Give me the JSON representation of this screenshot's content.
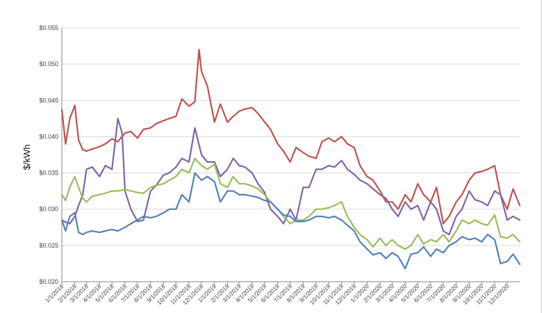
{
  "chart_data": {
    "type": "line",
    "ylabel": "$/kWh",
    "ylim": [
      0.02,
      0.055
    ],
    "y_ticks": [
      "$0.020",
      "$0.025",
      "$0.030",
      "$0.035",
      "$0.040",
      "$0.045",
      "$0.050",
      "$0.055"
    ],
    "x_ticks": [
      "1/1/2018",
      "2/1/2018",
      "3/1/2018",
      "4/1/2018",
      "5/1/2018",
      "6/1/2018",
      "7/1/2018",
      "8/1/2018",
      "9/1/2018",
      "10/1/2018",
      "11/1/2018",
      "12/1/2018",
      "1/1/2019",
      "2/1/2019",
      "3/1/2019",
      "4/1/2019",
      "5/1/2019",
      "6/1/2019",
      "7/1/2019",
      "8/1/2019",
      "9/1/2019",
      "10/1/2019",
      "11/1/2019",
      "12/1/2019",
      "1/1/2020",
      "2/1/2020",
      "3/1/2020",
      "4/1/2020",
      "5/1/2020",
      "6/1/2020",
      "7/1/2020",
      "8/1/2020",
      "9/1/2020",
      "10/1/2020",
      "11/1/2020",
      "12/1/2020"
    ],
    "grid": "horizontal",
    "legend": "none",
    "series": [
      {
        "color": "#c0504d",
        "x": [
          "1/1/2018",
          "1/10/2018",
          "1/20/2018",
          "2/1/2018",
          "2/10/2018",
          "2/20/2018",
          "3/1/2018",
          "3/15/2018",
          "4/1/2018",
          "4/15/2018",
          "5/1/2018",
          "5/15/2018",
          "6/1/2018",
          "6/15/2018",
          "7/1/2018",
          "7/15/2018",
          "8/1/2018",
          "8/15/2018",
          "9/1/2018",
          "9/15/2018",
          "10/1/2018",
          "10/15/2018",
          "11/1/2018",
          "11/15/2018",
          "11/25/2018",
          "12/1/2018",
          "12/15/2018",
          "1/1/2019",
          "1/15/2019",
          "2/1/2019",
          "2/15/2019",
          "3/1/2019",
          "3/15/2019",
          "4/1/2019",
          "4/15/2019",
          "5/1/2019",
          "5/15/2019",
          "6/1/2019",
          "6/15/2019",
          "7/1/2019",
          "7/15/2019",
          "8/1/2019",
          "8/15/2019",
          "9/1/2019",
          "9/15/2019",
          "10/1/2019",
          "10/15/2019",
          "11/1/2019",
          "11/15/2019",
          "12/1/2019",
          "12/15/2019",
          "1/1/2020",
          "1/15/2020",
          "2/1/2020",
          "2/15/2020",
          "3/1/2020",
          "3/15/2020",
          "4/1/2020",
          "4/15/2020",
          "5/1/2020",
          "5/15/2020",
          "6/1/2020",
          "6/15/2020",
          "7/1/2020",
          "7/15/2020",
          "8/1/2020",
          "8/15/2020",
          "9/1/2020",
          "9/15/2020",
          "10/1/2020",
          "10/15/2020",
          "11/1/2020",
          "11/15/2020",
          "12/1/2020",
          "12/15/2020",
          "12/31/2020"
        ],
        "y": [
          0.0437,
          0.039,
          0.0425,
          0.0443,
          0.0395,
          0.0382,
          0.038,
          0.0383,
          0.0386,
          0.039,
          0.0397,
          0.0393,
          0.0405,
          0.0407,
          0.0398,
          0.041,
          0.0412,
          0.0418,
          0.0422,
          0.0425,
          0.0428,
          0.0452,
          0.0442,
          0.0448,
          0.052,
          0.049,
          0.047,
          0.042,
          0.0445,
          0.042,
          0.0428,
          0.0435,
          0.0438,
          0.044,
          0.0432,
          0.042,
          0.041,
          0.039,
          0.038,
          0.0365,
          0.0385,
          0.0378,
          0.0373,
          0.037,
          0.0393,
          0.0398,
          0.0393,
          0.04,
          0.039,
          0.0385,
          0.036,
          0.0345,
          0.034,
          0.0325,
          0.031,
          0.031,
          0.03,
          0.032,
          0.031,
          0.0335,
          0.032,
          0.031,
          0.033,
          0.028,
          0.029,
          0.031,
          0.032,
          0.034,
          0.035,
          0.0352,
          0.0355,
          0.036,
          0.032,
          0.03,
          0.0328,
          0.0305
        ]
      },
      {
        "color": "#8064a2",
        "x": [
          "1/1/2018",
          "1/10/2018",
          "1/20/2018",
          "2/1/2018",
          "2/10/2018",
          "2/20/2018",
          "3/1/2018",
          "3/15/2018",
          "4/1/2018",
          "4/15/2018",
          "5/1/2018",
          "5/15/2018",
          "5/25/2018",
          "6/1/2018",
          "6/15/2018",
          "7/1/2018",
          "7/15/2018",
          "8/1/2018",
          "8/15/2018",
          "9/1/2018",
          "9/15/2018",
          "10/1/2018",
          "10/15/2018",
          "11/1/2018",
          "11/15/2018",
          "12/1/2018",
          "12/15/2018",
          "1/1/2019",
          "1/15/2019",
          "2/1/2019",
          "2/15/2019",
          "3/1/2019",
          "3/15/2019",
          "4/1/2019",
          "4/15/2019",
          "5/1/2019",
          "5/15/2019",
          "6/1/2019",
          "6/15/2019",
          "7/1/2019",
          "7/15/2019",
          "8/1/2019",
          "8/15/2019",
          "9/1/2019",
          "9/15/2019",
          "10/1/2019",
          "10/15/2019",
          "11/1/2019",
          "11/15/2019",
          "12/1/2019",
          "12/15/2019",
          "1/1/2020",
          "1/15/2020",
          "2/1/2020",
          "2/15/2020",
          "3/1/2020",
          "3/15/2020",
          "4/1/2020",
          "4/15/2020",
          "5/1/2020",
          "5/15/2020",
          "6/1/2020",
          "6/15/2020",
          "7/1/2020",
          "7/15/2020",
          "8/1/2020",
          "8/15/2020",
          "9/1/2020",
          "9/15/2020",
          "10/1/2020",
          "10/15/2020",
          "11/1/2020",
          "11/15/2020",
          "12/1/2020",
          "12/15/2020",
          "12/31/2020"
        ],
        "y": [
          0.0285,
          0.0282,
          0.028,
          0.029,
          0.0305,
          0.032,
          0.0355,
          0.0358,
          0.0345,
          0.036,
          0.0355,
          0.0425,
          0.0405,
          0.0325,
          0.03,
          0.0283,
          0.0285,
          0.0325,
          0.0333,
          0.0347,
          0.035,
          0.0358,
          0.037,
          0.0365,
          0.0412,
          0.0375,
          0.0365,
          0.0365,
          0.0345,
          0.0355,
          0.037,
          0.036,
          0.0358,
          0.035,
          0.0335,
          0.0323,
          0.03,
          0.029,
          0.028,
          0.03,
          0.0285,
          0.033,
          0.033,
          0.0355,
          0.0355,
          0.036,
          0.0358,
          0.0367,
          0.0355,
          0.0348,
          0.034,
          0.0335,
          0.0328,
          0.032,
          0.0315,
          0.03,
          0.029,
          0.031,
          0.03,
          0.0305,
          0.0285,
          0.031,
          0.03,
          0.027,
          0.0265,
          0.029,
          0.03,
          0.0325,
          0.0313,
          0.031,
          0.0305,
          0.0325,
          0.032,
          0.0285,
          0.029,
          0.0285
        ]
      },
      {
        "color": "#9bbb59",
        "x": [
          "1/1/2018",
          "1/10/2018",
          "1/20/2018",
          "2/1/2018",
          "2/10/2018",
          "2/20/2018",
          "3/1/2018",
          "3/15/2018",
          "4/1/2018",
          "4/15/2018",
          "5/1/2018",
          "5/15/2018",
          "6/1/2018",
          "6/15/2018",
          "7/1/2018",
          "7/15/2018",
          "8/1/2018",
          "8/15/2018",
          "9/1/2018",
          "9/15/2018",
          "10/1/2018",
          "10/15/2018",
          "11/1/2018",
          "11/15/2018",
          "12/1/2018",
          "12/15/2018",
          "1/1/2019",
          "1/15/2019",
          "2/1/2019",
          "2/15/2019",
          "3/1/2019",
          "3/15/2019",
          "4/1/2019",
          "4/15/2019",
          "5/1/2019",
          "5/15/2019",
          "6/1/2019",
          "6/15/2019",
          "7/1/2019",
          "7/15/2019",
          "8/1/2019",
          "8/15/2019",
          "9/1/2019",
          "9/15/2019",
          "10/1/2019",
          "10/15/2019",
          "11/1/2019",
          "11/15/2019",
          "12/1/2019",
          "12/15/2019",
          "1/1/2020",
          "1/15/2020",
          "2/1/2020",
          "2/15/2020",
          "3/1/2020",
          "3/15/2020",
          "4/1/2020",
          "4/15/2020",
          "5/1/2020",
          "5/15/2020",
          "6/1/2020",
          "6/15/2020",
          "7/1/2020",
          "7/15/2020",
          "8/1/2020",
          "8/15/2020",
          "9/1/2020",
          "9/15/2020",
          "10/1/2020",
          "10/15/2020",
          "11/1/2020",
          "11/15/2020",
          "12/1/2020",
          "12/15/2020",
          "12/31/2020"
        ],
        "y": [
          0.032,
          0.0312,
          0.033,
          0.0345,
          0.033,
          0.0315,
          0.031,
          0.0318,
          0.032,
          0.0322,
          0.0325,
          0.0325,
          0.0327,
          0.0325,
          0.0323,
          0.0322,
          0.033,
          0.0333,
          0.0335,
          0.034,
          0.0345,
          0.0355,
          0.035,
          0.037,
          0.036,
          0.0355,
          0.0362,
          0.0335,
          0.033,
          0.0345,
          0.0335,
          0.0335,
          0.0332,
          0.0328,
          0.032,
          0.031,
          0.03,
          0.029,
          0.028,
          0.0285,
          0.0285,
          0.029,
          0.03,
          0.03,
          0.0302,
          0.0305,
          0.031,
          0.029,
          0.0275,
          0.0265,
          0.0258,
          0.0248,
          0.026,
          0.025,
          0.0258,
          0.025,
          0.0245,
          0.025,
          0.0265,
          0.0252,
          0.0258,
          0.0255,
          0.0265,
          0.0255,
          0.027,
          0.0285,
          0.028,
          0.0285,
          0.028,
          0.0278,
          0.0292,
          0.0262,
          0.026,
          0.0265,
          0.0255
        ]
      },
      {
        "color": "#4f81bd",
        "x": [
          "1/1/2018",
          "1/10/2018",
          "1/20/2018",
          "2/1/2018",
          "2/10/2018",
          "2/20/2018",
          "3/1/2018",
          "3/15/2018",
          "4/1/2018",
          "4/15/2018",
          "5/1/2018",
          "5/15/2018",
          "6/1/2018",
          "6/15/2018",
          "7/1/2018",
          "7/15/2018",
          "8/1/2018",
          "8/15/2018",
          "9/1/2018",
          "9/15/2018",
          "10/1/2018",
          "10/15/2018",
          "11/1/2018",
          "11/15/2018",
          "12/1/2018",
          "12/15/2018",
          "1/1/2019",
          "1/15/2019",
          "2/1/2019",
          "2/15/2019",
          "3/1/2019",
          "3/15/2019",
          "4/1/2019",
          "4/15/2019",
          "5/1/2019",
          "5/15/2019",
          "6/1/2019",
          "6/15/2019",
          "7/1/2019",
          "7/15/2019",
          "8/1/2019",
          "8/15/2019",
          "9/1/2019",
          "9/15/2019",
          "10/1/2019",
          "10/15/2019",
          "11/1/2019",
          "11/15/2019",
          "12/1/2019",
          "12/15/2019",
          "1/1/2020",
          "1/15/2020",
          "2/1/2020",
          "2/15/2020",
          "3/1/2020",
          "3/15/2020",
          "4/1/2020",
          "4/15/2020",
          "5/1/2020",
          "5/15/2020",
          "6/1/2020",
          "6/15/2020",
          "7/1/2020",
          "7/15/2020",
          "8/1/2020",
          "8/15/2020",
          "9/1/2020",
          "9/15/2020",
          "10/1/2020",
          "10/15/2020",
          "11/1/2020",
          "11/15/2020",
          "12/1/2020",
          "12/15/2020",
          "12/31/2020"
        ],
        "y": [
          0.0285,
          0.027,
          0.029,
          0.0295,
          0.0268,
          0.0265,
          0.0268,
          0.027,
          0.0268,
          0.027,
          0.0272,
          0.027,
          0.0275,
          0.028,
          0.0285,
          0.029,
          0.0288,
          0.029,
          0.0295,
          0.03,
          0.03,
          0.032,
          0.031,
          0.035,
          0.034,
          0.0345,
          0.0338,
          0.031,
          0.0325,
          0.0325,
          0.032,
          0.032,
          0.0318,
          0.0316,
          0.0312,
          0.031,
          0.03,
          0.0292,
          0.029,
          0.0283,
          0.0283,
          0.0285,
          0.029,
          0.029,
          0.0288,
          0.029,
          0.0285,
          0.0278,
          0.027,
          0.0255,
          0.0245,
          0.0237,
          0.024,
          0.0232,
          0.024,
          0.0235,
          0.0218,
          0.0238,
          0.024,
          0.0248,
          0.0235,
          0.0245,
          0.024,
          0.025,
          0.0255,
          0.0262,
          0.0258,
          0.026,
          0.0255,
          0.0265,
          0.0258,
          0.0225,
          0.0228,
          0.0238,
          0.0224
        ]
      }
    ]
  }
}
